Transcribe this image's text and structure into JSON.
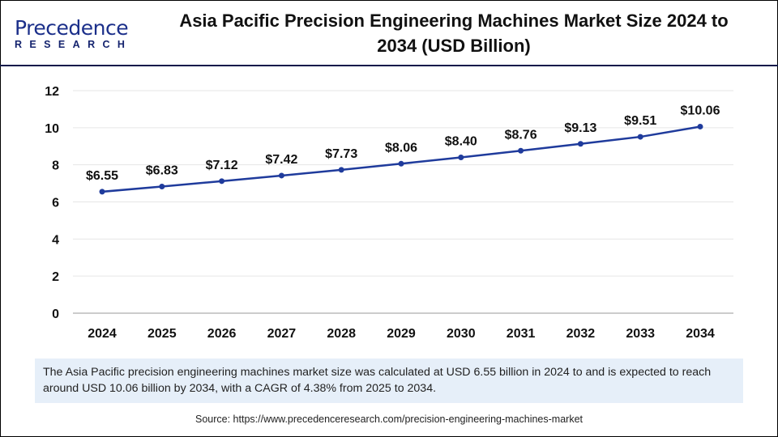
{
  "logo": {
    "top": "Precedence",
    "bottom": "RESEARCH"
  },
  "title": "Asia Pacific Precision Engineering Machines Market Size 2024 to 2034 (USD Billion)",
  "info": "The Asia Pacific precision engineering machines market size was calculated at USD 6.55 billion in 2024 to and is expected to reach around USD 10.06 billion by 2034, with a CAGR of 4.38% from 2025 to 2034.",
  "source": "Source: https://www.precedenceresearch.com/precision-engineering-machines-market",
  "chart_data": {
    "type": "line",
    "title": "Asia Pacific Precision Engineering Machines Market Size 2024 to 2034 (USD Billion)",
    "categories": [
      "2024",
      "2025",
      "2026",
      "2027",
      "2028",
      "2029",
      "2030",
      "2031",
      "2032",
      "2033",
      "2034"
    ],
    "values": [
      6.55,
      6.83,
      7.12,
      7.42,
      7.73,
      8.06,
      8.4,
      8.76,
      9.13,
      9.51,
      10.06
    ],
    "labels": [
      "$6.55",
      "$6.83",
      "$7.12",
      "$7.42",
      "$7.73",
      "$8.06",
      "$8.40",
      "$8.76",
      "$9.13",
      "$9.51",
      "$10.06"
    ],
    "yticks": [
      "0",
      "2",
      "4",
      "6",
      "8",
      "10",
      "12"
    ],
    "ylim": [
      0,
      12
    ],
    "grid": true,
    "color": "#1f3b9c"
  }
}
